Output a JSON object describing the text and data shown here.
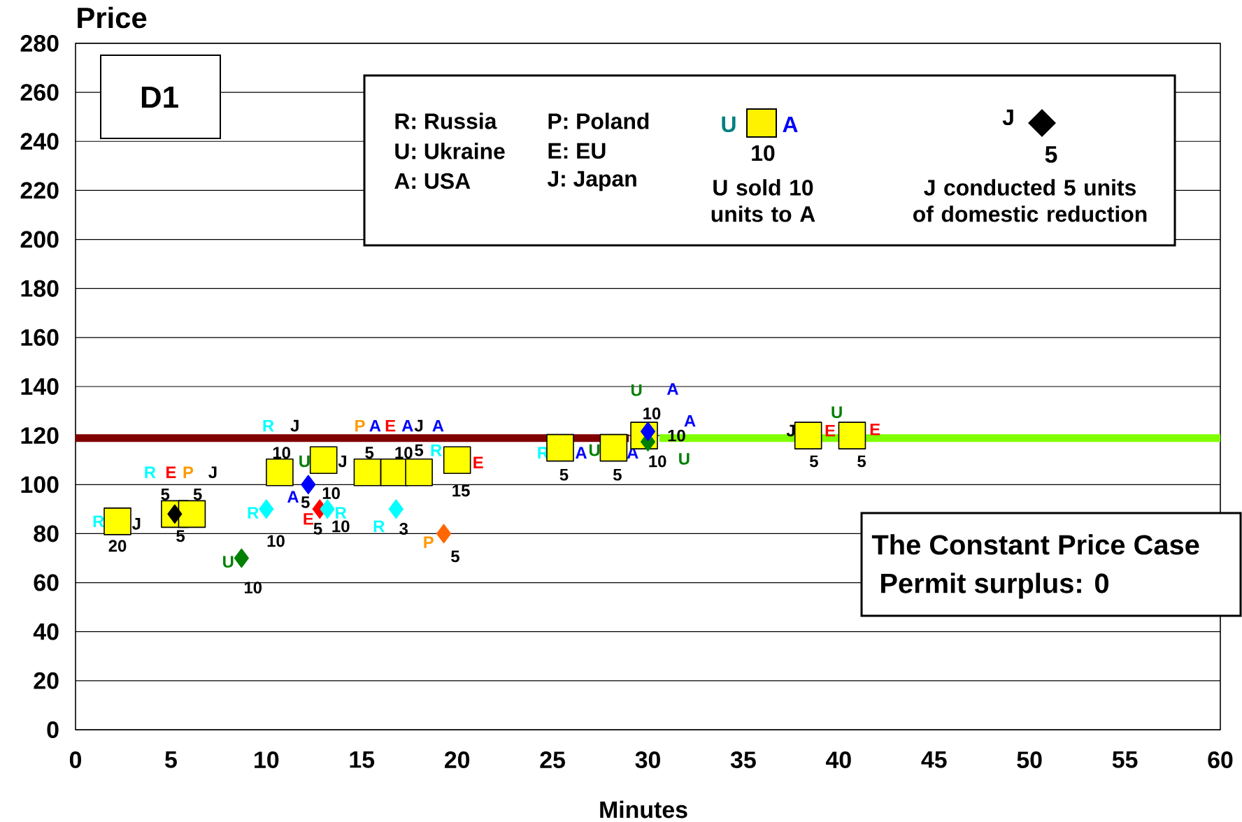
{
  "chart_data": {
    "type": "scatter",
    "xlabel": "Minutes",
    "ylabel": "Price",
    "xlim": [
      0,
      60
    ],
    "ylim": [
      0,
      280
    ],
    "xticks": [
      0,
      5,
      10,
      15,
      20,
      25,
      30,
      35,
      40,
      45,
      50,
      55,
      60
    ],
    "yticks": [
      0,
      20,
      40,
      60,
      80,
      100,
      120,
      140,
      160,
      180,
      200,
      220,
      240,
      260,
      280
    ],
    "grid": "y",
    "series": [
      {
        "type": "line",
        "color": "#800000",
        "x": [
          0,
          29
        ],
        "values": [
          119,
          119
        ]
      },
      {
        "type": "line",
        "color": "#80ff00",
        "x": [
          30.6,
          60
        ],
        "values": [
          119,
          119
        ]
      },
      {
        "marker": "square",
        "color": "#ffff00",
        "x": [
          2.2,
          5.2,
          6.1,
          10.7,
          13.0,
          15.3,
          16.7,
          18.0,
          20.0,
          25.4,
          28.2,
          29.8,
          38.4,
          40.7
        ],
        "values": [
          85,
          88,
          88,
          105,
          110,
          105,
          105,
          105,
          110,
          115,
          115,
          120,
          120,
          120
        ]
      },
      {
        "marker": "diamond",
        "colors": [
          "#000000",
          "#008000",
          "#00ffff",
          "#0000ff",
          "#ff0000",
          "#00ffff",
          "#00ffff",
          "#ff6600",
          "#008000",
          "#0000ff"
        ],
        "x": [
          5.2,
          8.7,
          10.0,
          12.2,
          12.8,
          13.2,
          16.8,
          19.3,
          30.0,
          30.0
        ],
        "values": [
          88,
          70,
          90,
          100,
          90,
          90,
          90,
          80,
          117.5,
          121.7
        ]
      }
    ],
    "annotations": [
      "R",
      "J",
      "20",
      "R",
      "E",
      "P",
      "J",
      "5",
      "5",
      "5",
      "U",
      "10",
      "R",
      "10",
      "R",
      "J",
      "10",
      "U",
      "J",
      "10",
      "A",
      "5",
      "E",
      "5",
      "R",
      "10",
      "P",
      "A",
      "E",
      "A",
      "J",
      "A",
      "5",
      "10",
      "5",
      "R",
      "3",
      "P",
      "5",
      "R",
      "E",
      "15",
      "R",
      "A",
      "5",
      "U",
      "A",
      "5",
      "U",
      "A",
      "10",
      "A",
      "10",
      "10",
      "U",
      "J",
      "E",
      "5",
      "U",
      "E",
      "5",
      "D1",
      "R: Russia",
      "U: Ukraine",
      "A: USA",
      "P: Poland",
      "E: EU",
      "J: Japan",
      "U",
      "A",
      "10",
      "U sold 10 units to A",
      "J",
      "5",
      "J conducted 5 units of domestic reduction",
      "The Constant Price Case",
      "Permit surplus: 0"
    ]
  }
}
